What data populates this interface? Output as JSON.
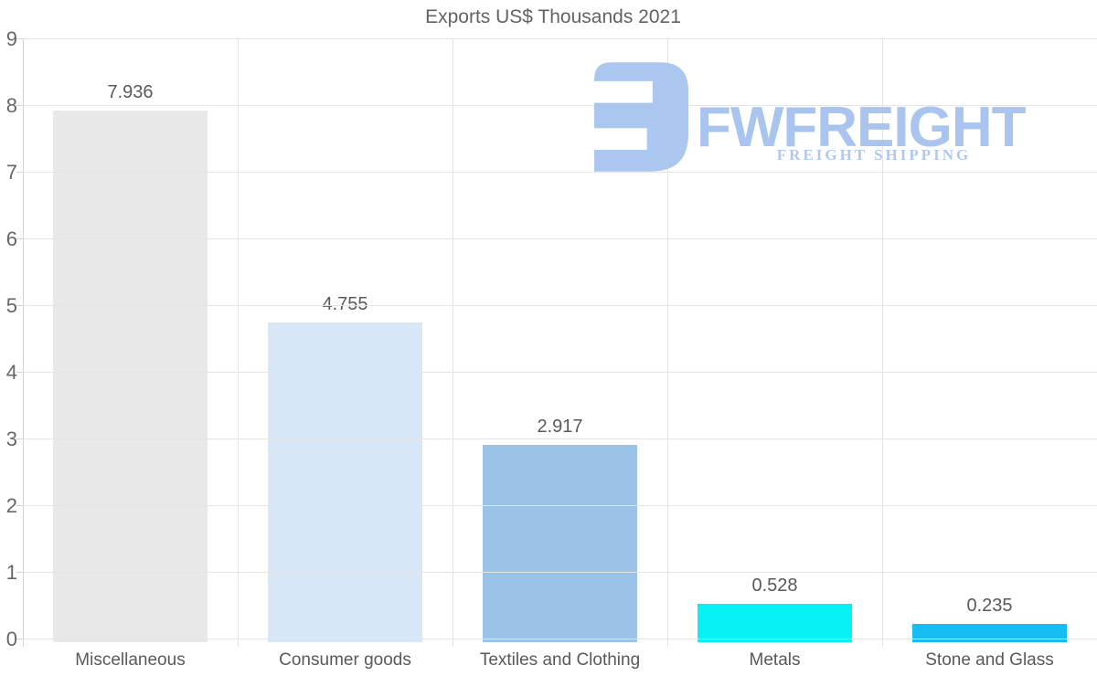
{
  "chart_data": {
    "type": "bar",
    "title": "Exports US$ Thousands 2021",
    "categories": [
      "Miscellaneous",
      "Consumer goods",
      "Textiles and Clothing",
      "Metals",
      "Stone and Glass"
    ],
    "values": [
      7.936,
      4.755,
      2.917,
      0.528,
      0.235
    ],
    "value_labels": [
      "7.936",
      "4.755",
      "2.917",
      "0.528",
      "0.235"
    ],
    "bar_colors": [
      "#e8e8e8",
      "#d7e7f8",
      "#9bc3e7",
      "#08f2f5",
      "#17bdf2"
    ],
    "xlabel": "",
    "ylabel": "",
    "ylim": [
      0,
      9
    ],
    "y_ticks": [
      0,
      1,
      2,
      3,
      4,
      5,
      6,
      7,
      8,
      9
    ],
    "grid": true,
    "legend_position": "none"
  },
  "logo": {
    "wordmark": "FWFREIGHT",
    "tagline": "FREIGHT SHIPPING",
    "icon_color": "#abc7f0",
    "text_color": "#a9c4ee"
  },
  "colors": {
    "background": "#ffffff",
    "title_text": "#636363",
    "axis_text": "#666666",
    "value_text": "#595959",
    "gridline": "#e4e4e4",
    "axis_line": "#d2d2d2"
  }
}
